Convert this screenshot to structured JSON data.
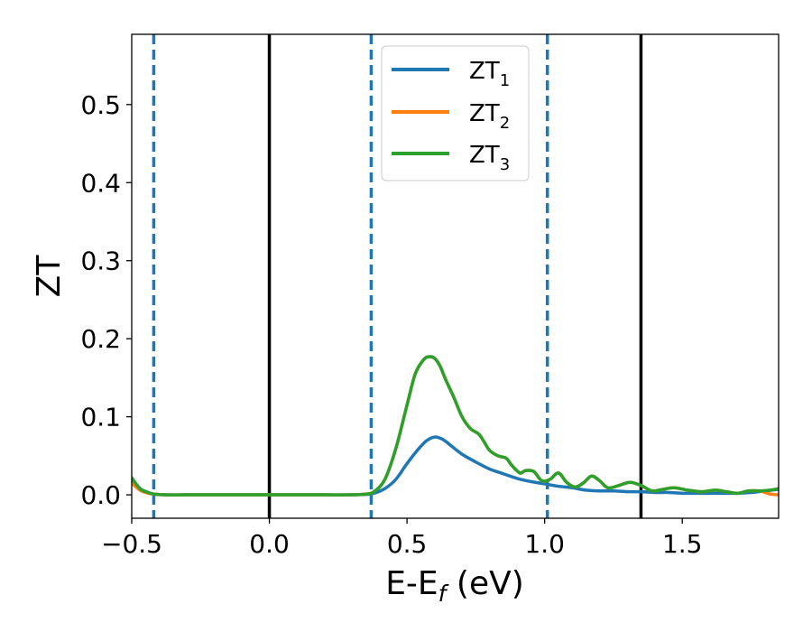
{
  "chart_data": {
    "type": "line",
    "xlabel_main": "E-E",
    "xlabel_sub": "f",
    "xlabel_tail": " (eV)",
    "ylabel": "ZT",
    "xlim": [
      -0.5,
      1.85
    ],
    "ylim": [
      -0.03,
      0.59
    ],
    "xticks": [
      -0.5,
      0.0,
      0.5,
      1.0,
      1.5
    ],
    "xtick_labels": [
      "−0.5",
      "0.0",
      "0.5",
      "1.0",
      "1.5"
    ],
    "yticks": [
      0.0,
      0.1,
      0.2,
      0.3,
      0.4,
      0.5
    ],
    "ytick_labels": [
      "0.0",
      "0.1",
      "0.2",
      "0.3",
      "0.4",
      "0.5"
    ],
    "grid": false,
    "legend_position": "top-center",
    "vlines_solid": [
      0.0,
      1.35
    ],
    "vlines_dashed": [
      -0.42,
      0.37,
      1.01
    ],
    "vline_solid_color": "#000000",
    "vline_dashed_color": "#1f77b4",
    "series": [
      {
        "name": "ZT",
        "subscript": "1",
        "color": "#1f77b4",
        "x": [
          -0.5,
          -0.47,
          -0.44,
          -0.42,
          -0.38,
          -0.3,
          -0.2,
          -0.1,
          0.0,
          0.1,
          0.2,
          0.3,
          0.35,
          0.38,
          0.42,
          0.46,
          0.5,
          0.54,
          0.57,
          0.6,
          0.63,
          0.66,
          0.7,
          0.75,
          0.8,
          0.85,
          0.9,
          0.95,
          1.0,
          1.05,
          1.1,
          1.15,
          1.2,
          1.25,
          1.3,
          1.35,
          1.4,
          1.45,
          1.5,
          1.55,
          1.6,
          1.65,
          1.7,
          1.75,
          1.8,
          1.85
        ],
        "y": [
          0.02,
          0.008,
          0.003,
          0.001,
          0.0,
          0.0,
          0.0,
          0.0,
          0.0,
          0.0,
          0.0,
          0.0,
          0.0005,
          0.002,
          0.008,
          0.02,
          0.04,
          0.058,
          0.069,
          0.074,
          0.071,
          0.063,
          0.052,
          0.042,
          0.033,
          0.027,
          0.021,
          0.017,
          0.014,
          0.011,
          0.009,
          0.006,
          0.005,
          0.005,
          0.004,
          0.004,
          0.003,
          0.003,
          0.002,
          0.002,
          0.002,
          0.002,
          0.002,
          0.003,
          0.005,
          0.007
        ]
      },
      {
        "name": "ZT",
        "subscript": "2",
        "color": "#ff7f0e",
        "x": [
          -0.5,
          -0.47,
          -0.44,
          -0.42,
          -0.38,
          -0.3,
          -0.2,
          -0.1,
          0.0,
          0.1,
          0.2,
          0.3,
          0.35,
          0.38,
          0.42,
          0.46,
          0.5,
          0.53,
          0.56,
          0.58,
          0.6,
          0.62,
          0.64,
          0.67,
          0.7,
          0.73,
          0.76,
          0.78,
          0.8,
          0.83,
          0.86,
          0.88,
          0.91,
          0.93,
          0.96,
          0.99,
          1.02,
          1.05,
          1.08,
          1.11,
          1.14,
          1.17,
          1.2,
          1.23,
          1.27,
          1.31,
          1.35,
          1.39,
          1.43,
          1.47,
          1.52,
          1.57,
          1.62,
          1.66,
          1.7,
          1.74,
          1.78,
          1.82,
          1.85
        ],
        "y": [
          0.015,
          0.006,
          0.002,
          0.001,
          0.0,
          0.0,
          0.0,
          0.0,
          0.0,
          0.0,
          0.0,
          0.0,
          0.001,
          0.004,
          0.02,
          0.06,
          0.115,
          0.155,
          0.173,
          0.177,
          0.175,
          0.165,
          0.148,
          0.125,
          0.1,
          0.085,
          0.078,
          0.068,
          0.057,
          0.05,
          0.047,
          0.038,
          0.028,
          0.031,
          0.03,
          0.018,
          0.02,
          0.028,
          0.016,
          0.01,
          0.015,
          0.024,
          0.018,
          0.009,
          0.012,
          0.016,
          0.012,
          0.005,
          0.007,
          0.009,
          0.006,
          0.004,
          0.006,
          0.004,
          0.002,
          0.005,
          0.005,
          0.001,
          0.0
        ]
      },
      {
        "name": "ZT",
        "subscript": "3",
        "color": "#2ca02c",
        "x": [
          -0.5,
          -0.47,
          -0.44,
          -0.42,
          -0.38,
          -0.3,
          -0.2,
          -0.1,
          0.0,
          0.1,
          0.2,
          0.3,
          0.35,
          0.38,
          0.42,
          0.46,
          0.5,
          0.53,
          0.56,
          0.58,
          0.6,
          0.62,
          0.64,
          0.67,
          0.7,
          0.73,
          0.76,
          0.78,
          0.8,
          0.83,
          0.86,
          0.88,
          0.91,
          0.93,
          0.96,
          0.99,
          1.02,
          1.05,
          1.08,
          1.11,
          1.14,
          1.17,
          1.2,
          1.23,
          1.27,
          1.31,
          1.35,
          1.39,
          1.43,
          1.47,
          1.52,
          1.57,
          1.62,
          1.66,
          1.7,
          1.74,
          1.78,
          1.82,
          1.85
        ],
        "y": [
          0.022,
          0.008,
          0.003,
          0.001,
          0.0,
          0.0,
          0.0,
          0.0,
          0.0,
          0.0,
          0.0,
          0.0,
          0.001,
          0.004,
          0.02,
          0.06,
          0.115,
          0.155,
          0.173,
          0.177,
          0.175,
          0.165,
          0.148,
          0.125,
          0.1,
          0.085,
          0.078,
          0.068,
          0.057,
          0.05,
          0.047,
          0.038,
          0.028,
          0.031,
          0.03,
          0.018,
          0.02,
          0.028,
          0.016,
          0.01,
          0.015,
          0.024,
          0.018,
          0.009,
          0.012,
          0.016,
          0.012,
          0.005,
          0.007,
          0.009,
          0.006,
          0.004,
          0.006,
          0.004,
          0.002,
          0.005,
          0.005,
          0.006,
          0.008
        ]
      }
    ]
  }
}
